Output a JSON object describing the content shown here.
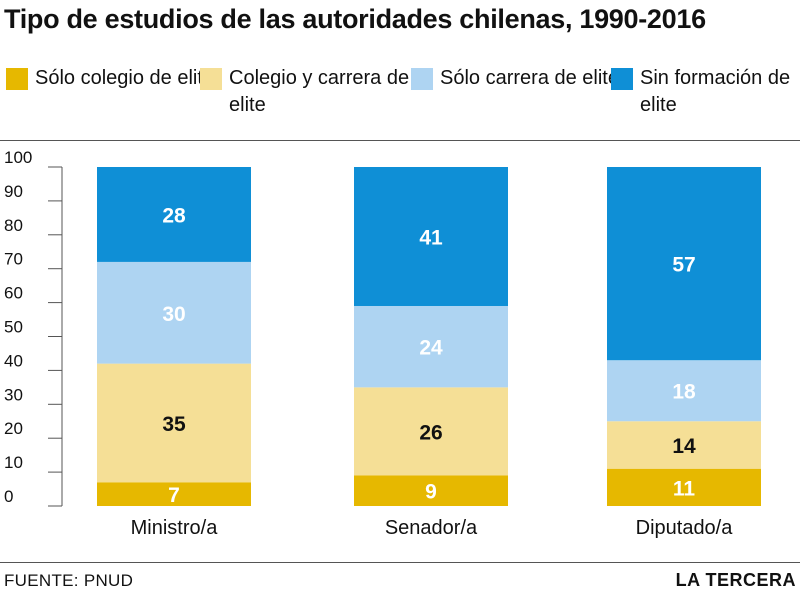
{
  "title": "Tipo de estudios de las autoridades chilenas, 1990-2016",
  "footer": {
    "source": "FUENTE: PNUD",
    "brand": "LA TERCERA"
  },
  "chart_data": {
    "type": "bar",
    "stacked": true,
    "categories": [
      "Ministro/a",
      "Senador/a",
      "Diputado/a"
    ],
    "series": [
      {
        "name": "Sólo colegio de elite",
        "color": "#e6b800",
        "label_color": "#ffffff",
        "values": [
          7,
          9,
          11
        ]
      },
      {
        "name": "Colegio y carrera de elite",
        "color": "#f5df96",
        "label_color": "#111111",
        "values": [
          35,
          26,
          14
        ]
      },
      {
        "name": "Sólo carrera de elite",
        "color": "#aed4f2",
        "label_color": "#ffffff",
        "values": [
          30,
          24,
          18
        ]
      },
      {
        "name": "Sin formación de elite",
        "color": "#0f8fd6",
        "label_color": "#ffffff",
        "values": [
          28,
          41,
          57
        ]
      }
    ],
    "ylim": [
      0,
      100
    ],
    "yticks": [
      0,
      10,
      20,
      30,
      40,
      50,
      60,
      70,
      80,
      90,
      100
    ],
    "legend_position": "top",
    "grid": false
  }
}
